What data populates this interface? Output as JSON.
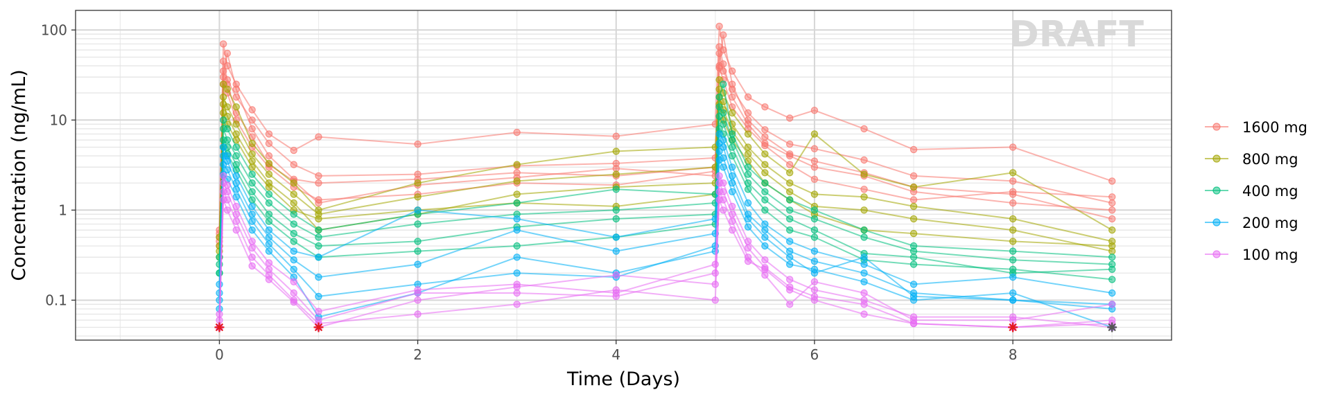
{
  "chart_data": {
    "type": "line",
    "watermark": "DRAFT",
    "xlabel": "Time (Days)",
    "ylabel": "Concentration (ng/mL)",
    "x_scale": "linear",
    "y_scale": "log10",
    "xlim": [
      -1.45,
      9.6
    ],
    "ylim": [
      0.036,
      165
    ],
    "x_ticks": [
      0,
      2,
      4,
      6,
      8
    ],
    "x_tick_labels": [
      "0",
      "2",
      "4",
      "6",
      "8"
    ],
    "y_ticks": [
      0.1,
      1,
      10,
      100
    ],
    "y_tick_labels": [
      "0.1",
      "1",
      "10",
      "100"
    ],
    "grid": true,
    "legend_position": "right",
    "times": [
      0,
      0.04,
      0.08,
      0.17,
      0.33,
      0.5,
      0.75,
      1,
      2,
      3,
      4,
      5,
      5.04,
      5.08,
      5.17,
      5.33,
      5.5,
      5.75,
      6,
      6.5,
      7,
      8,
      9
    ],
    "blq_value": 0.05,
    "blq_points": [
      [
        0,
        0.05
      ],
      [
        1,
        0.05
      ],
      [
        8,
        0.05
      ],
      [
        9,
        0.05
      ]
    ],
    "series": [
      {
        "name": "1600 mg",
        "color": "#F8766D",
        "subjects": [
          [
            0.6,
            70,
            40,
            25,
            13,
            7,
            4.6,
            6.5,
            5.4,
            7.3,
            6.6,
            9,
            110,
            60,
            35,
            18,
            14,
            10.5,
            12.8,
            8,
            4.7,
            5,
            2.1
          ],
          [
            0.4,
            45,
            28,
            18,
            10,
            5.5,
            3.2,
            2.4,
            2.5,
            3.1,
            3.3,
            3.8,
            55,
            35,
            22,
            12,
            7.8,
            5.4,
            4.8,
            3.6,
            2.4,
            2.1,
            1.2
          ],
          [
            0.5,
            30,
            55,
            22,
            8,
            4,
            2.2,
            2,
            2.2,
            2.6,
            2.4,
            3,
            40,
            88,
            25,
            10,
            6.5,
            4.2,
            3.5,
            2.6,
            1.8,
            1.5,
            0.8
          ],
          [
            0.45,
            35,
            25,
            12,
            6.5,
            3.2,
            2.1,
            1.2,
            1.9,
            2.3,
            2.9,
            2.4,
            65,
            42,
            18,
            9,
            5.5,
            4,
            3,
            2.4,
            1.6,
            1.2,
            1
          ],
          [
            0.55,
            25,
            20,
            10,
            5,
            3,
            1.8,
            1.3,
            1.5,
            2,
            1.9,
            2.7,
            38,
            28,
            14,
            8,
            5.2,
            3.2,
            2.2,
            1.7,
            1.3,
            1.6,
            1.4
          ]
        ]
      },
      {
        "name": "800 mg",
        "color": "#A3A500",
        "subjects": [
          [
            0.3,
            25,
            22,
            14,
            5.5,
            3.3,
            2,
            1,
            2,
            3.2,
            4.5,
            5,
            28,
            20,
            12,
            7,
            4.2,
            2.6,
            7,
            2.5,
            1.8,
            2.6,
            0.6
          ],
          [
            0.4,
            18,
            14,
            9,
            4.2,
            2.5,
            1.5,
            0.9,
            1.4,
            2.1,
            2.5,
            3,
            22,
            16,
            9,
            5,
            3.2,
            2,
            1.5,
            1.4,
            1.1,
            0.8,
            0.45
          ],
          [
            0.35,
            15,
            11,
            7,
            3.5,
            2,
            1.2,
            0.6,
            0.9,
            1.5,
            1.8,
            2,
            18,
            13,
            7.5,
            4.2,
            2.6,
            1.6,
            1.1,
            1,
            0.8,
            0.6,
            0.35
          ],
          [
            0.5,
            12,
            9,
            6,
            3,
            1.8,
            1,
            0.8,
            1,
            1.2,
            1.1,
            1.5,
            15,
            10,
            6,
            3.5,
            2,
            1.3,
            0.9,
            0.6,
            0.55,
            0.45,
            0.4
          ]
        ]
      },
      {
        "name": "400 mg",
        "color": "#00BF7D",
        "subjects": [
          [
            0.2,
            10,
            8,
            5,
            2.5,
            1.5,
            0.9,
            0.6,
            0.9,
            1.2,
            1.7,
            1.5,
            18,
            25,
            7,
            3,
            2,
            1.3,
            1,
            0.6,
            0.4,
            0.35,
            0.3
          ],
          [
            0.3,
            8,
            6,
            4,
            2,
            1.2,
            0.7,
            0.5,
            0.7,
            0.9,
            1,
            1.2,
            14,
            12,
            6,
            2.5,
            1.6,
            1,
            0.8,
            0.5,
            0.35,
            0.28,
            0.25
          ],
          [
            0.25,
            6,
            5,
            3.2,
            1.6,
            0.9,
            0.55,
            0.4,
            0.45,
            0.65,
            0.8,
            0.9,
            11,
            9,
            5,
            2,
            1.3,
            0.8,
            0.6,
            0.33,
            0.3,
            0.2,
            0.22
          ],
          [
            0.2,
            5,
            4.2,
            2.8,
            1.3,
            0.75,
            0.45,
            0.3,
            0.35,
            0.4,
            0.5,
            0.7,
            8,
            7,
            4,
            1.7,
            1,
            0.6,
            0.5,
            0.28,
            0.25,
            0.22,
            0.17
          ]
        ]
      },
      {
        "name": "200 mg",
        "color": "#00B0F6",
        "subjects": [
          [
            0.08,
            5,
            4,
            2.4,
            1.1,
            0.6,
            0.35,
            0.3,
            1,
            0.8,
            0.5,
            0.8,
            7,
            6,
            3,
            1.2,
            0.7,
            0.45,
            0.35,
            0.25,
            0.15,
            0.18,
            0.12
          ],
          [
            0.15,
            4,
            3.5,
            2,
            0.9,
            0.5,
            0.28,
            0.18,
            0.25,
            0.6,
            0.35,
            0.55,
            5.5,
            5,
            2.4,
            0.9,
            0.6,
            0.35,
            0.27,
            0.2,
            0.12,
            0.1,
            0.08
          ],
          [
            0.1,
            3.2,
            2.8,
            1.7,
            0.75,
            0.42,
            0.22,
            0.11,
            0.15,
            0.2,
            0.18,
            0.4,
            4.5,
            3.8,
            2,
            0.8,
            0.5,
            0.3,
            0.2,
            0.3,
            0.11,
            0.1,
            0.09
          ],
          [
            0.12,
            2.5,
            2.2,
            1.4,
            0.6,
            0.35,
            0.18,
            0.065,
            0.12,
            0.3,
            0.2,
            0.35,
            3.6,
            3,
            1.6,
            0.65,
            0.4,
            0.25,
            0.22,
            0.16,
            0.1,
            0.12,
            0.05
          ]
        ]
      },
      {
        "name": "100 mg",
        "color": "#E76BF3",
        "subjects": [
          [
            0.05,
            2.4,
            1.9,
            1.1,
            0.45,
            0.26,
            0.16,
            0.075,
            0.13,
            0.15,
            0.12,
            0.25,
            2.4,
            2,
            1.1,
            0.45,
            0.28,
            0.17,
            0.13,
            0.1,
            0.065,
            0.065,
            0.05
          ],
          [
            0.06,
            2,
            1.6,
            0.9,
            0.38,
            0.22,
            0.12,
            0.06,
            0.12,
            0.12,
            0.11,
            0.2,
            2,
            1.6,
            0.9,
            0.38,
            0.23,
            0.14,
            0.11,
            0.09,
            0.055,
            0.05,
            0.055
          ],
          [
            0.05,
            1.6,
            1.3,
            0.75,
            0.3,
            0.19,
            0.1,
            0.055,
            0.07,
            0.09,
            0.13,
            0.1,
            1.6,
            1.3,
            0.75,
            0.3,
            0.19,
            0.09,
            0.16,
            0.12,
            0.06,
            0.06,
            0.09
          ],
          [
            0.07,
            1.3,
            1,
            0.6,
            0.24,
            0.17,
            0.095,
            0.05,
            0.1,
            0.14,
            0.19,
            0.15,
            1.3,
            1,
            0.6,
            0.27,
            0.22,
            0.13,
            0.1,
            0.07,
            0.055,
            0.05,
            0.06
          ]
        ]
      }
    ]
  }
}
